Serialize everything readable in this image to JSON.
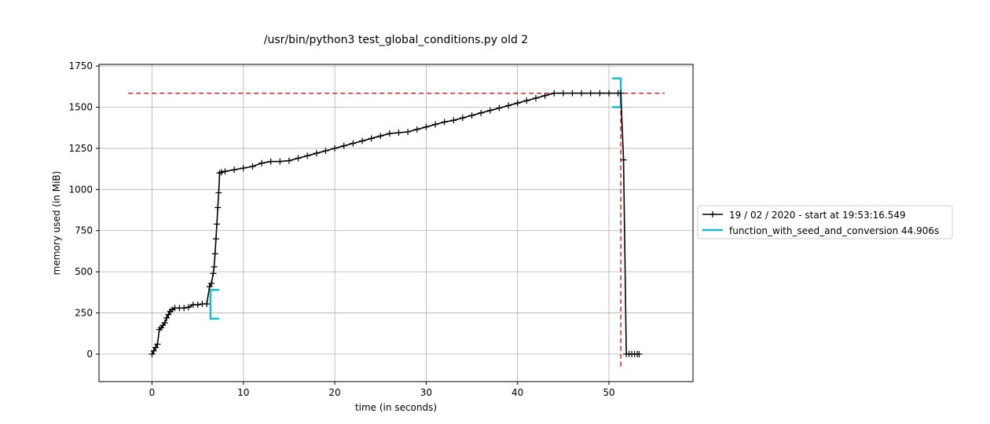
{
  "chart_data": {
    "type": "line",
    "title": "/usr/bin/python3 test_global_conditions.py old 2",
    "xlabel": "time (in seconds)",
    "ylabel": "memory used (in MiB)",
    "xlim": [
      -5.8,
      59.2
    ],
    "ylim": [
      -167,
      1760
    ],
    "xticks": [
      0,
      10,
      20,
      30,
      40,
      50
    ],
    "yticks": [
      0,
      250,
      500,
      750,
      1000,
      1250,
      1500,
      1750
    ],
    "grid": true,
    "legend_position": "right, outside plot",
    "series": [
      {
        "name": "19 / 02 / 2020 - start at 19:53:16.549",
        "color": "#000000",
        "marker": "plus",
        "x": [
          0,
          0.2,
          0.4,
          0.6,
          0.8,
          1.0,
          1.2,
          1.4,
          1.6,
          1.8,
          2.0,
          2.2,
          2.5,
          3.0,
          3.5,
          4.0,
          4.5,
          5.0,
          5.5,
          6.0,
          6.3,
          6.5,
          6.7,
          6.8,
          6.9,
          7.0,
          7.1,
          7.2,
          7.3,
          7.4,
          7.6,
          8,
          9,
          10,
          11,
          12,
          13,
          14,
          15,
          16,
          17,
          18,
          19,
          20,
          21,
          22,
          23,
          24,
          25,
          26,
          27,
          28,
          29,
          30,
          31,
          32,
          33,
          34,
          35,
          36,
          37,
          38,
          39,
          40,
          41,
          42,
          43,
          44,
          45,
          46,
          47,
          48,
          49,
          50,
          51.0,
          51.3,
          51.6,
          51.9,
          52.2,
          52.5,
          52.8,
          53.1,
          53.3
        ],
        "y": [
          0,
          20,
          40,
          60,
          150,
          160,
          175,
          190,
          220,
          240,
          260,
          270,
          280,
          280,
          280,
          285,
          300,
          300,
          305,
          305,
          410,
          430,
          490,
          530,
          610,
          700,
          790,
          890,
          980,
          1100,
          1105,
          1110,
          1120,
          1130,
          1140,
          1160,
          1170,
          1170,
          1175,
          1190,
          1205,
          1220,
          1235,
          1250,
          1265,
          1280,
          1295,
          1310,
          1325,
          1340,
          1345,
          1350,
          1365,
          1380,
          1395,
          1410,
          1420,
          1435,
          1450,
          1465,
          1480,
          1495,
          1510,
          1525,
          1540,
          1555,
          1570,
          1585,
          1585,
          1585,
          1585,
          1585,
          1585,
          1585,
          1585,
          1585,
          1180,
          0,
          0,
          0,
          0,
          0,
          0
        ]
      },
      {
        "name": "function_with_seed_and_conversion 44.906s",
        "color": "#17becf",
        "type": "bracket",
        "start_x": 6.4,
        "end_x": 51.3,
        "start_y_range": [
          215,
          390
        ],
        "end_y_range": [
          1500,
          1675
        ]
      }
    ],
    "reference_lines": [
      {
        "orientation": "horizontal",
        "y": 1585,
        "x_range": [
          -2.6,
          56.1
        ],
        "color": "#d62728",
        "style": "dashed"
      },
      {
        "orientation": "vertical",
        "x": 51.3,
        "y_range": [
          -75,
          1585
        ],
        "color": "#d62728",
        "style": "dashed"
      }
    ]
  }
}
